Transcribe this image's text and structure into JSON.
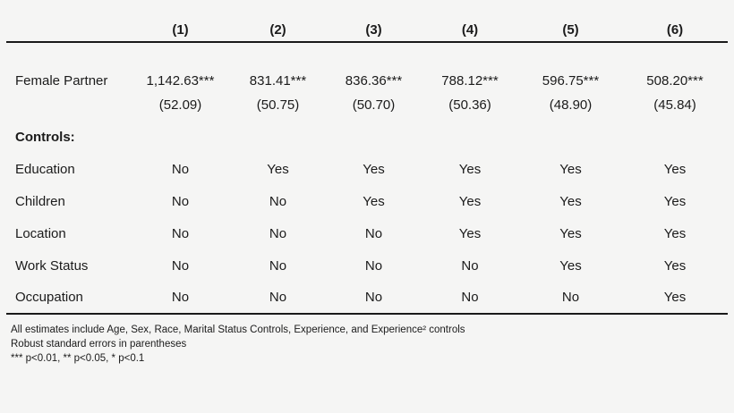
{
  "table": {
    "column_headers": [
      "(1)",
      "(2)",
      "(3)",
      "(4)",
      "(5)",
      "(6)"
    ],
    "coefficient_row": {
      "label": "Female Partner",
      "estimates": [
        "1,142.63***",
        "831.41***",
        "836.36***",
        "788.12***",
        "596.75***",
        "508.20***"
      ],
      "std_errors": [
        "(52.09)",
        "(50.75)",
        "(50.70)",
        "(50.36)",
        "(48.90)",
        "(45.84)"
      ]
    },
    "controls_header": "Controls:",
    "control_rows": [
      {
        "label": "Education",
        "values": [
          "No",
          "Yes",
          "Yes",
          "Yes",
          "Yes",
          "Yes"
        ]
      },
      {
        "label": "Children",
        "values": [
          "No",
          "No",
          "Yes",
          "Yes",
          "Yes",
          "Yes"
        ]
      },
      {
        "label": "Location",
        "values": [
          "No",
          "No",
          "No",
          "Yes",
          "Yes",
          "Yes"
        ]
      },
      {
        "label": "Work Status",
        "values": [
          "No",
          "No",
          "No",
          "No",
          "Yes",
          "Yes"
        ]
      },
      {
        "label": "Occupation",
        "values": [
          "No",
          "No",
          "No",
          "No",
          "No",
          "Yes"
        ]
      }
    ]
  },
  "notes": [
    "All estimates include Age, Sex, Race, Marital Status Controls, Experience, and Experience² controls",
    "Robust standard errors in parentheses",
    "*** p<0.01, ** p<0.05, * p<0.1"
  ],
  "colors": {
    "background": "#f5f5f4",
    "text": "#1b1b1b",
    "rule": "#1a1a1a"
  }
}
